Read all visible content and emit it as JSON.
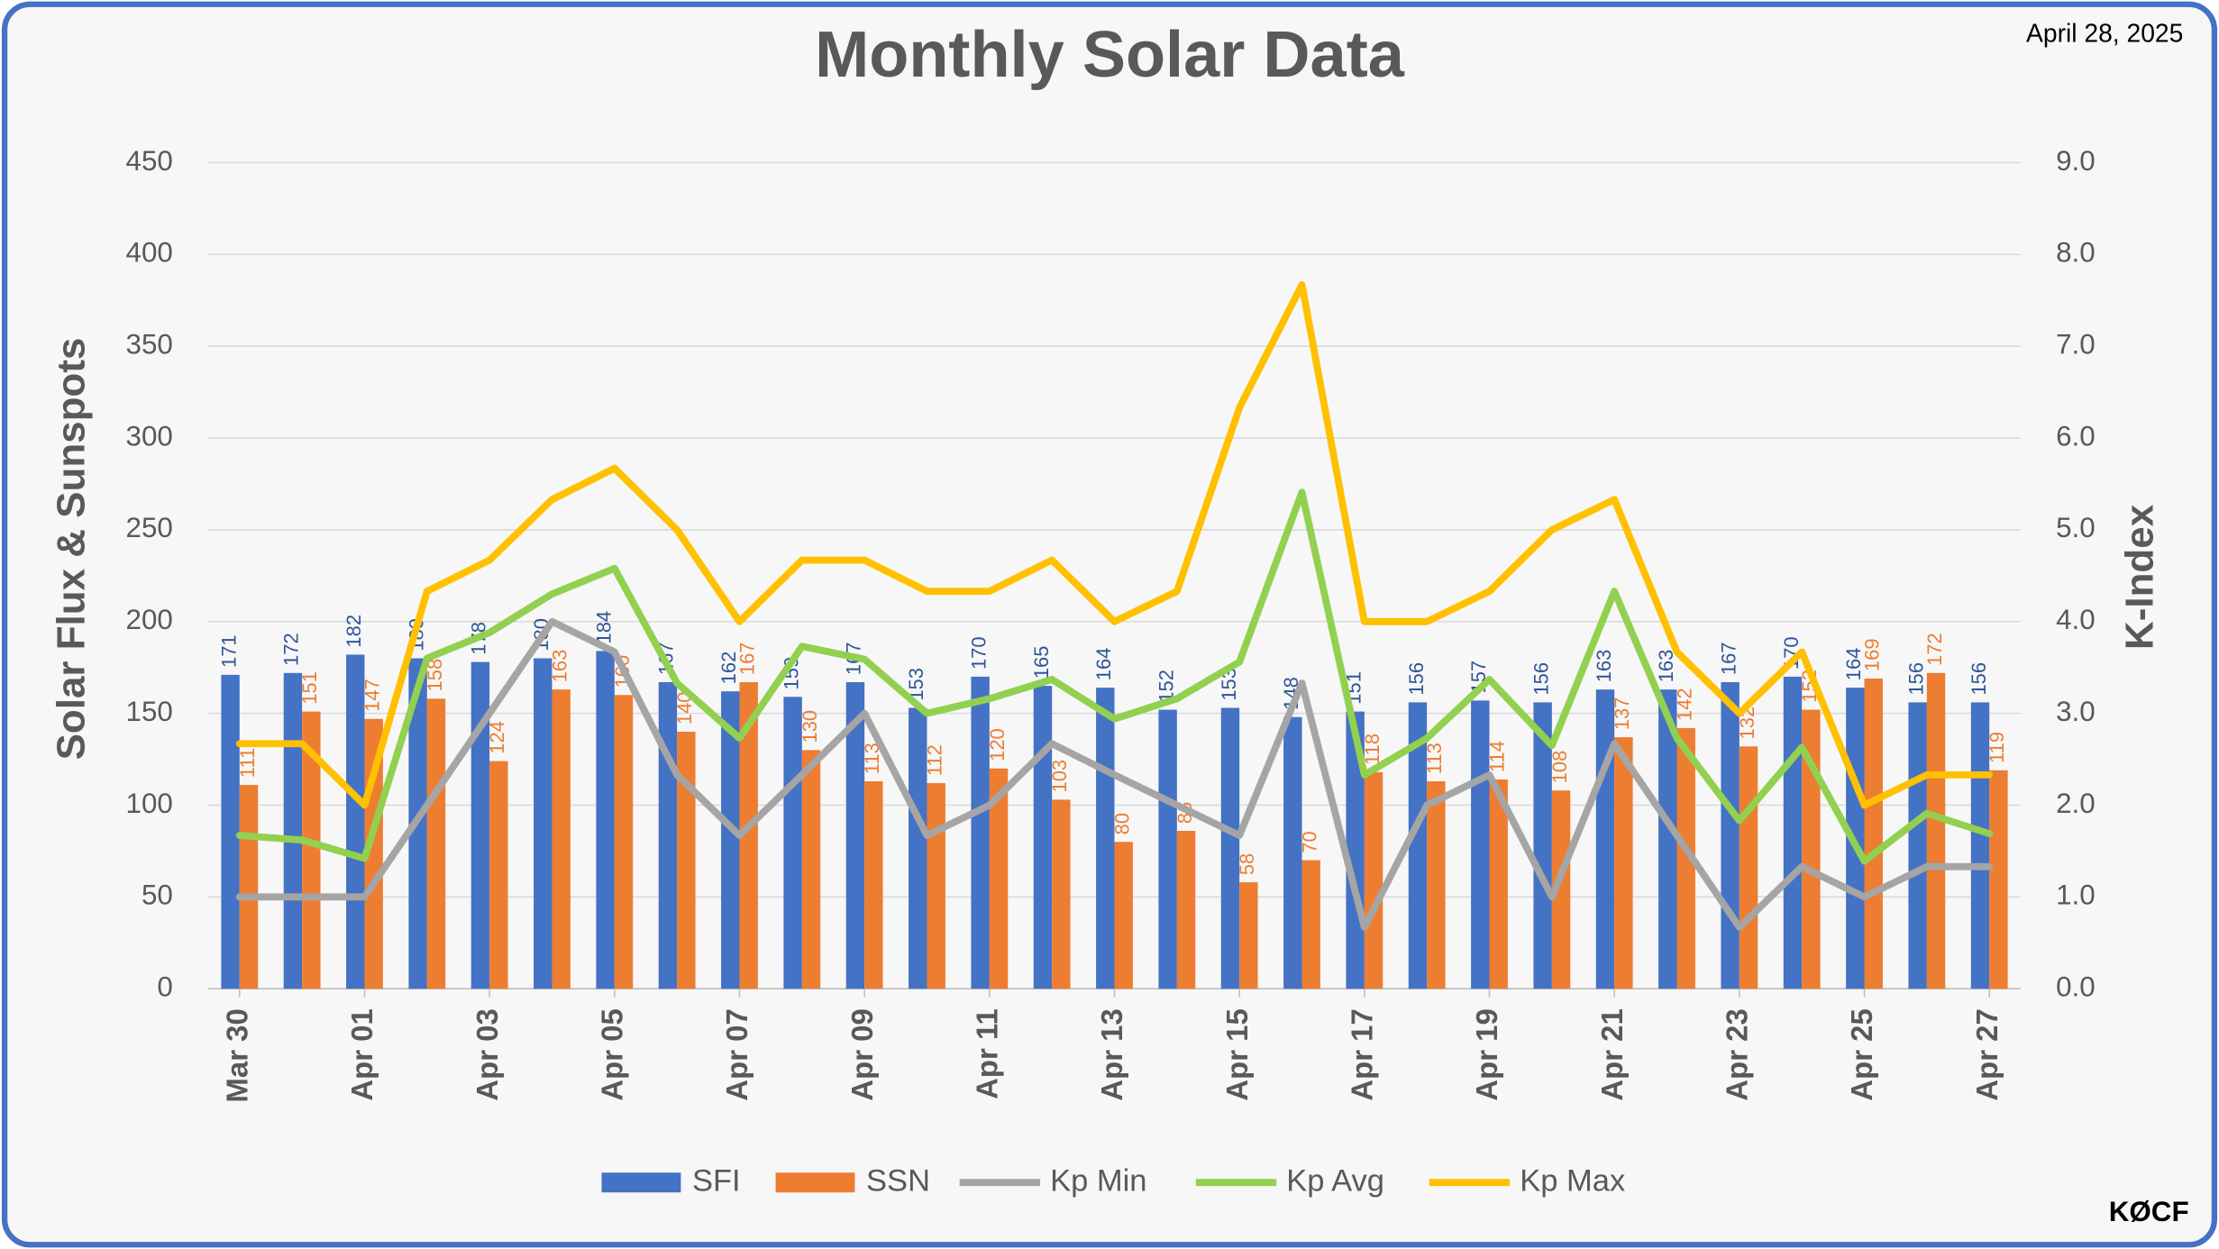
{
  "chart_data": {
    "type": "bar",
    "title": "Monthly Solar Data",
    "date": "April 28, 2025",
    "credit": "KØCF",
    "y_label": "Solar Flux & Sunspots",
    "y2_label": "K-Index",
    "categories": [
      "Mar 30",
      null,
      "Apr 01",
      null,
      "Apr 03",
      null,
      "Apr 05",
      null,
      "Apr 07",
      null,
      "Apr 09",
      null,
      "Apr 11",
      null,
      "Apr 13",
      null,
      "Apr 15",
      null,
      "Apr 17",
      null,
      "Apr 19",
      null,
      "Apr 21",
      null,
      "Apr 23",
      null,
      "Apr 25",
      null,
      "Apr 27"
    ],
    "ylim": [
      0,
      450
    ],
    "yticks": [
      0,
      50,
      100,
      150,
      200,
      250,
      300,
      350,
      400,
      450
    ],
    "y2lim": [
      0,
      9
    ],
    "y2ticks": [
      {
        "value": 0,
        "label": "0.0"
      },
      {
        "value": 1,
        "label": "1.0"
      },
      {
        "value": 2,
        "label": "2.0"
      },
      {
        "value": 3,
        "label": "3.0"
      },
      {
        "value": 4,
        "label": "4.0"
      },
      {
        "value": 5,
        "label": "5.0"
      },
      {
        "value": 6,
        "label": "6.0"
      },
      {
        "value": 7,
        "label": "7.0"
      },
      {
        "value": 8,
        "label": "8.0"
      },
      {
        "value": 9,
        "label": "9.0"
      }
    ],
    "grid": true,
    "legend": "bottom",
    "series": [
      {
        "name": "SFI",
        "type": "bar",
        "color": "#4472c4",
        "label_color": "#2f5597",
        "values": [
          171,
          172,
          182,
          180,
          178,
          180,
          184,
          167,
          162,
          159,
          167,
          153,
          170,
          165,
          164,
          152,
          153,
          148,
          151,
          156,
          157,
          156,
          163,
          163,
          167,
          170,
          164,
          156,
          156
        ]
      },
      {
        "name": "SSN",
        "type": "bar",
        "color": "#ed7d31",
        "label_color": "#ed7d31",
        "values": [
          111,
          151,
          147,
          158,
          124,
          163,
          160,
          140,
          167,
          130,
          113,
          112,
          120,
          103,
          80,
          86,
          58,
          70,
          118,
          113,
          114,
          108,
          137,
          142,
          132,
          152,
          169,
          172,
          119
        ]
      },
      {
        "name": "Kp Min",
        "type": "line",
        "axis": "y2",
        "color": "#a5a5a5",
        "values": [
          1.0,
          1.0,
          1.0,
          2.0,
          3.0,
          4.0,
          3.67,
          2.33,
          1.67,
          2.33,
          3.0,
          1.67,
          2.0,
          2.67,
          2.33,
          2.0,
          1.67,
          3.33,
          0.67,
          2.0,
          2.33,
          1.0,
          2.67,
          1.67,
          0.67,
          1.33,
          1.0,
          1.33,
          1.33
        ]
      },
      {
        "name": "Kp Avg",
        "type": "line",
        "axis": "y2",
        "color": "#92d050",
        "values": [
          1.67,
          1.62,
          1.42,
          3.6,
          3.88,
          4.3,
          4.58,
          3.33,
          2.73,
          3.73,
          3.59,
          3.0,
          3.16,
          3.37,
          2.94,
          3.16,
          3.56,
          5.41,
          2.33,
          2.73,
          3.37,
          2.65,
          4.33,
          2.73,
          1.83,
          2.63,
          1.39,
          1.91,
          1.69
        ]
      },
      {
        "name": "Kp Max",
        "type": "line",
        "axis": "y2",
        "color": "#ffc000",
        "values": [
          2.67,
          2.67,
          2.0,
          4.33,
          4.67,
          5.33,
          5.67,
          5.0,
          4.0,
          4.67,
          4.67,
          4.33,
          4.33,
          4.67,
          4.0,
          4.33,
          6.33,
          7.67,
          4.0,
          4.0,
          4.33,
          5.0,
          5.33,
          3.67,
          3.0,
          3.67,
          2.0,
          2.33,
          2.33
        ]
      }
    ]
  }
}
